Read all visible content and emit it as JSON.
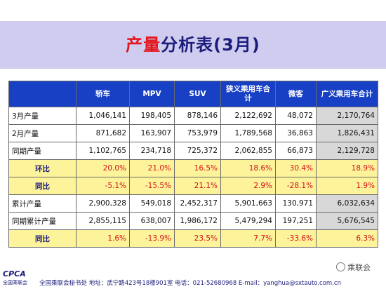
{
  "title": {
    "accent": "产量",
    "rest": "分析表(3月)"
  },
  "table": {
    "columns": [
      "",
      "轿车",
      "MPV",
      "SUV",
      "狭义乘用车合计",
      "微客",
      "广义乘用车合计"
    ],
    "rows": [
      {
        "label": "3月产量",
        "type": "value",
        "cells": [
          "1,046,141",
          "198,405",
          "878,146",
          "2,122,692",
          "48,072",
          "2,170,764"
        ]
      },
      {
        "label": "2月产量",
        "type": "value",
        "cells": [
          "871,682",
          "163,907",
          "753,979",
          "1,789,568",
          "36,863",
          "1,826,431"
        ]
      },
      {
        "label": "同期产量",
        "type": "value",
        "cells": [
          "1,102,765",
          "234,718",
          "725,372",
          "2,062,855",
          "66,873",
          "2,129,728"
        ]
      },
      {
        "label": "环比",
        "type": "pct",
        "cells": [
          "20.0%",
          "21.0%",
          "16.5%",
          "18.6%",
          "30.4%",
          "18.9%"
        ]
      },
      {
        "label": "同比",
        "type": "pct",
        "cells": [
          "-5.1%",
          "-15.5%",
          "21.1%",
          "2.9%",
          "-28.1%",
          "1.9%"
        ]
      },
      {
        "label": "累计产量",
        "type": "value",
        "cells": [
          "2,900,328",
          "549,018",
          "2,452,317",
          "5,901,663",
          "130,971",
          "6,032,634"
        ]
      },
      {
        "label": "同期累计产量",
        "type": "value",
        "cells": [
          "2,855,115",
          "638,007",
          "1,986,172",
          "5,479,294",
          "197,251",
          "5,676,545"
        ]
      },
      {
        "label": "同比",
        "type": "pct",
        "cells": [
          "1.6%",
          "-13.9%",
          "23.5%",
          "7.7%",
          "-33.6%",
          "6.3%"
        ]
      }
    ]
  },
  "footer": {
    "logo": "CPCA",
    "logo_sub": "全国乘联会",
    "address": "全国乘联会秘书处 地址：武宁路423号18楼901室 电话：021-52680968 E-mail：yanghua@sxtauto.com.cn"
  },
  "watermark": "乘联会"
}
